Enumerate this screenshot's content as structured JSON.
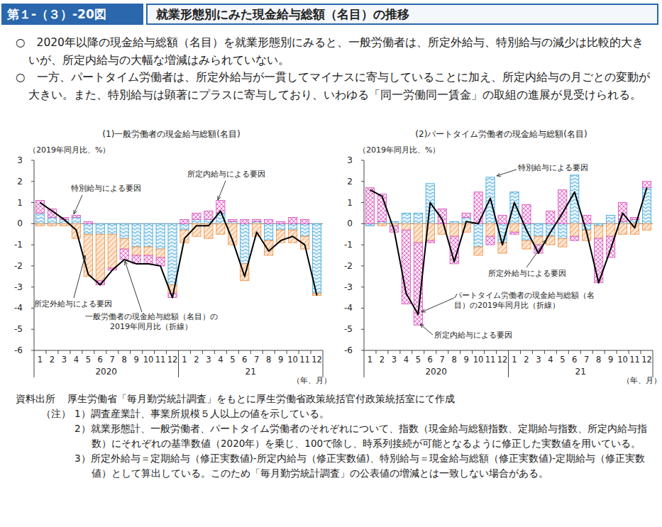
{
  "header": {
    "figure_no": "第１-（３）-20図",
    "title": "就業形態別にみた現金給与総額（名目）の推移"
  },
  "bullets": [
    "○　2020年以降の現金給与総額（名目）を就業形態別にみると、一般労働者は、所定外給与、特別給与の減少は比較的大きいが、所定内給与の大幅な増減はみられていない。",
    "○　一方、パートタイム労働者は、所定外給与が一貫してマイナスに寄与していることに加え、所定内給与の月ごとの変動が大きい。また、特別給与は顕著にプラスに寄与しており、いわゆる「同一労働同一賃金」の取組の進展が見受けられる。"
  ],
  "chart_data": [
    {
      "type": "bar",
      "title": "(1)一般労働者の現金給与総額(名目)",
      "ylabel": "（2019年同月比、%）",
      "xlabel": "（年、月）",
      "year_labels": [
        "2020",
        "21"
      ],
      "categories": [
        "1",
        "2",
        "3",
        "4",
        "5",
        "6",
        "7",
        "8",
        "9",
        "10",
        "11",
        "12",
        "1",
        "2",
        "3",
        "4",
        "5",
        "6",
        "7",
        "8",
        "9",
        "10",
        "11",
        "12"
      ],
      "stacked": true,
      "ylim": [
        -6,
        3
      ],
      "yticks": [
        -6,
        -5,
        -4,
        -3,
        -2,
        -1,
        0,
        1,
        2,
        3
      ],
      "series": [
        {
          "name": "特別給与による要因",
          "type": "bar",
          "color": "#3ba3d9",
          "values": [
            0.5,
            0.3,
            0.2,
            0.3,
            -0.5,
            -0.5,
            -0.5,
            -0.7,
            -1.1,
            -1.1,
            -1.2,
            -2.9,
            -0.3,
            0.2,
            0.2,
            0.5,
            0.1,
            -1.9,
            0.1,
            -0.8,
            -0.3,
            -0.3,
            -0.6,
            -3.3
          ]
        },
        {
          "name": "所定外給与による要因",
          "type": "bar",
          "color": "#f08c3c",
          "values": [
            -0.1,
            -0.1,
            -0.1,
            -0.7,
            -2.0,
            -2.2,
            -1.6,
            -0.5,
            -0.4,
            -0.4,
            -0.4,
            -0.4,
            -0.6,
            -0.6,
            -0.7,
            -0.5,
            -1.0,
            -0.8,
            -0.6,
            -0.7,
            -0.6,
            -0.6,
            -0.6,
            -0.1
          ]
        },
        {
          "name": "所定内給与による要因",
          "type": "bar",
          "color": "#d94fbf",
          "values": [
            0.6,
            0.4,
            0.1,
            0.1,
            0.1,
            -0.2,
            -0.1,
            -0.5,
            -0.4,
            -0.4,
            -0.4,
            -0.2,
            0.2,
            0.3,
            0.4,
            0.6,
            0.1,
            0.2,
            0.1,
            0.2,
            0.1,
            0.3,
            0.2,
            0.0
          ]
        },
        {
          "name": "一般労働者の現金給与総額（名目）の2019年同月比（折線）",
          "type": "line",
          "color": "#000000",
          "values": [
            1.0,
            0.6,
            0.2,
            -0.3,
            -2.4,
            -2.9,
            -2.2,
            -1.7,
            -1.9,
            -1.9,
            -2.0,
            -3.5,
            -0.7,
            -0.1,
            -0.1,
            0.6,
            -0.8,
            -2.5,
            -0.4,
            -1.3,
            -0.8,
            -0.6,
            -1.0,
            -3.4
          ]
        }
      ]
    },
    {
      "type": "bar",
      "title": "(2)パートタイム労働者の現金給与総額(名目)",
      "ylabel": "（2019年同月比、%）",
      "xlabel": "（年、月）",
      "year_labels": [
        "2020",
        "21"
      ],
      "categories": [
        "1",
        "2",
        "3",
        "4",
        "5",
        "6",
        "7",
        "8",
        "9",
        "10",
        "11",
        "12",
        "1",
        "2",
        "3",
        "4",
        "5",
        "6",
        "7",
        "8",
        "9",
        "10",
        "11",
        "12"
      ],
      "stacked": true,
      "ylim": [
        -6,
        3
      ],
      "yticks": [
        -6,
        -5,
        -4,
        -3,
        -2,
        -1,
        0,
        1,
        2,
        3
      ],
      "series": [
        {
          "name": "特別給与による要因",
          "type": "bar",
          "color": "#3ba3d9",
          "values": [
            -0.1,
            0.1,
            0.1,
            0.5,
            0.5,
            1.9,
            0.0,
            0.1,
            0.3,
            -1.1,
            2.2,
            -0.9,
            1.5,
            -0.8,
            -0.6,
            -0.6,
            -0.7,
            2.3,
            -0.3,
            -0.1,
            0.4,
            0.1,
            0.2,
            1.7
          ]
        },
        {
          "name": "所定外給与による要因",
          "type": "bar",
          "color": "#f08c3c",
          "values": [
            0.0,
            -0.1,
            -0.1,
            -0.3,
            -0.9,
            -0.8,
            -0.5,
            -0.6,
            -0.4,
            -0.4,
            -0.6,
            -0.5,
            -0.4,
            -0.4,
            -0.4,
            -0.4,
            -0.4,
            -0.6,
            -0.5,
            -0.6,
            -0.6,
            -0.5,
            -0.5,
            -0.3
          ]
        },
        {
          "name": "所定内給与による要因",
          "type": "bar",
          "color": "#d94fbf",
          "values": [
            1.7,
            1.3,
            -0.3,
            -3.5,
            -3.9,
            -0.1,
            0.7,
            -1.3,
            0.2,
            1.5,
            -0.4,
            0.4,
            -0.1,
            0.9,
            -0.4,
            0.6,
            1.6,
            -0.2,
            0.4,
            -2.1,
            -1.0,
            0.9,
            0.1,
            0.3
          ]
        },
        {
          "name": "パートタイム労働者の現金給与総額（名目）の2019年同月比（折線）",
          "type": "line",
          "color": "#000000",
          "values": [
            1.6,
            1.3,
            -0.3,
            -3.3,
            -4.3,
            1.0,
            0.2,
            -1.8,
            0.1,
            0.0,
            1.2,
            -1.0,
            1.0,
            -0.3,
            -1.4,
            -0.4,
            0.5,
            1.5,
            -0.4,
            -2.8,
            -1.2,
            0.5,
            -0.2,
            1.7
          ]
        }
      ]
    }
  ],
  "notes": {
    "source_label": "資料出所",
    "source": "厚生労働省「毎月勤労統計調査」をもとに厚生労働省政策統括官付政策統括室にて作成",
    "note_label": "（注）",
    "items": [
      "1）調査産業計、事業所規模５人以上の値を示している。",
      "2）就業形態計、一般労働者、パートタイム労働者のそれぞれについて、指数（現金給与総額指数、定期給与指数、所定内給与指数）にそれぞれの基準数値（2020年）を乗じ、100で除し、時系列接続が可能となるように修正した実数値を用いている。",
      "3）所定外給与＝定期給与（修正実数値)-所定内給与（修正実数値)、特別給与＝現金給与総額（修正実数値)-定期給与（修正実数値）として算出している。このため「毎月勤労統計調査」の公表値の増減とは一致しない場合がある。"
    ]
  }
}
